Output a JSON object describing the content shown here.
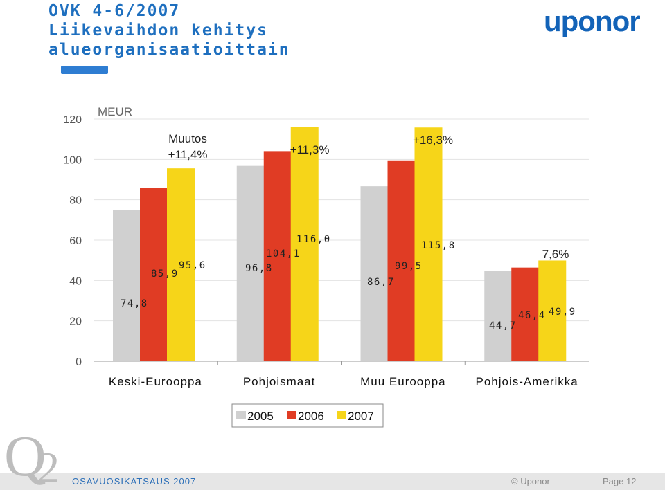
{
  "slide": {
    "title_lines": [
      "OVK 4-6/2007",
      "Liikevaihdon kehitys",
      "alueorganisaatioittain"
    ],
    "logo_text": "uponor",
    "corner_logo": {
      "q": "Q",
      "two": "2"
    },
    "footer": {
      "left": "OSAVUOSIKATSAUS 2007",
      "copyright": "© Uponor",
      "page": "Page 12"
    }
  },
  "colors": {
    "s2005": "#d0d0d0",
    "s2006": "#e03c24",
    "s2007": "#f6d519",
    "title": "#1e6fbf",
    "brand": "#1363b8"
  },
  "chart_data": {
    "type": "bar",
    "ylabel": "MEUR",
    "ylim": [
      0,
      120
    ],
    "yticks": [
      0,
      20,
      40,
      60,
      80,
      100,
      120
    ],
    "grid": true,
    "legend_position": "bottom",
    "categories": [
      "Keski-Eurooppa",
      "Pohjoismaat",
      "Muu Eurooppa",
      "Pohjois-Amerikka"
    ],
    "series": [
      {
        "name": "2005",
        "values": [
          74.8,
          96.8,
          86.7,
          44.7
        ],
        "labels": [
          "74,8",
          "96,8",
          "86,7",
          "44,7"
        ]
      },
      {
        "name": "2006",
        "values": [
          85.9,
          104.1,
          99.5,
          46.4
        ],
        "labels": [
          "85,9",
          "104,1",
          "99,5",
          "46,4"
        ]
      },
      {
        "name": "2007",
        "values": [
          95.6,
          116.0,
          115.8,
          49.9
        ],
        "labels": [
          "95,6",
          "116,0",
          "115,8",
          "49,9"
        ]
      }
    ],
    "annotations": [
      {
        "category": 0,
        "lines": [
          "Muutos",
          "+11,4%"
        ]
      },
      {
        "category": 1,
        "lines": [
          "+11,3%"
        ]
      },
      {
        "category": 2,
        "lines": [
          "+16,3%"
        ]
      },
      {
        "category": 3,
        "lines": [
          "7,6%"
        ]
      }
    ]
  }
}
